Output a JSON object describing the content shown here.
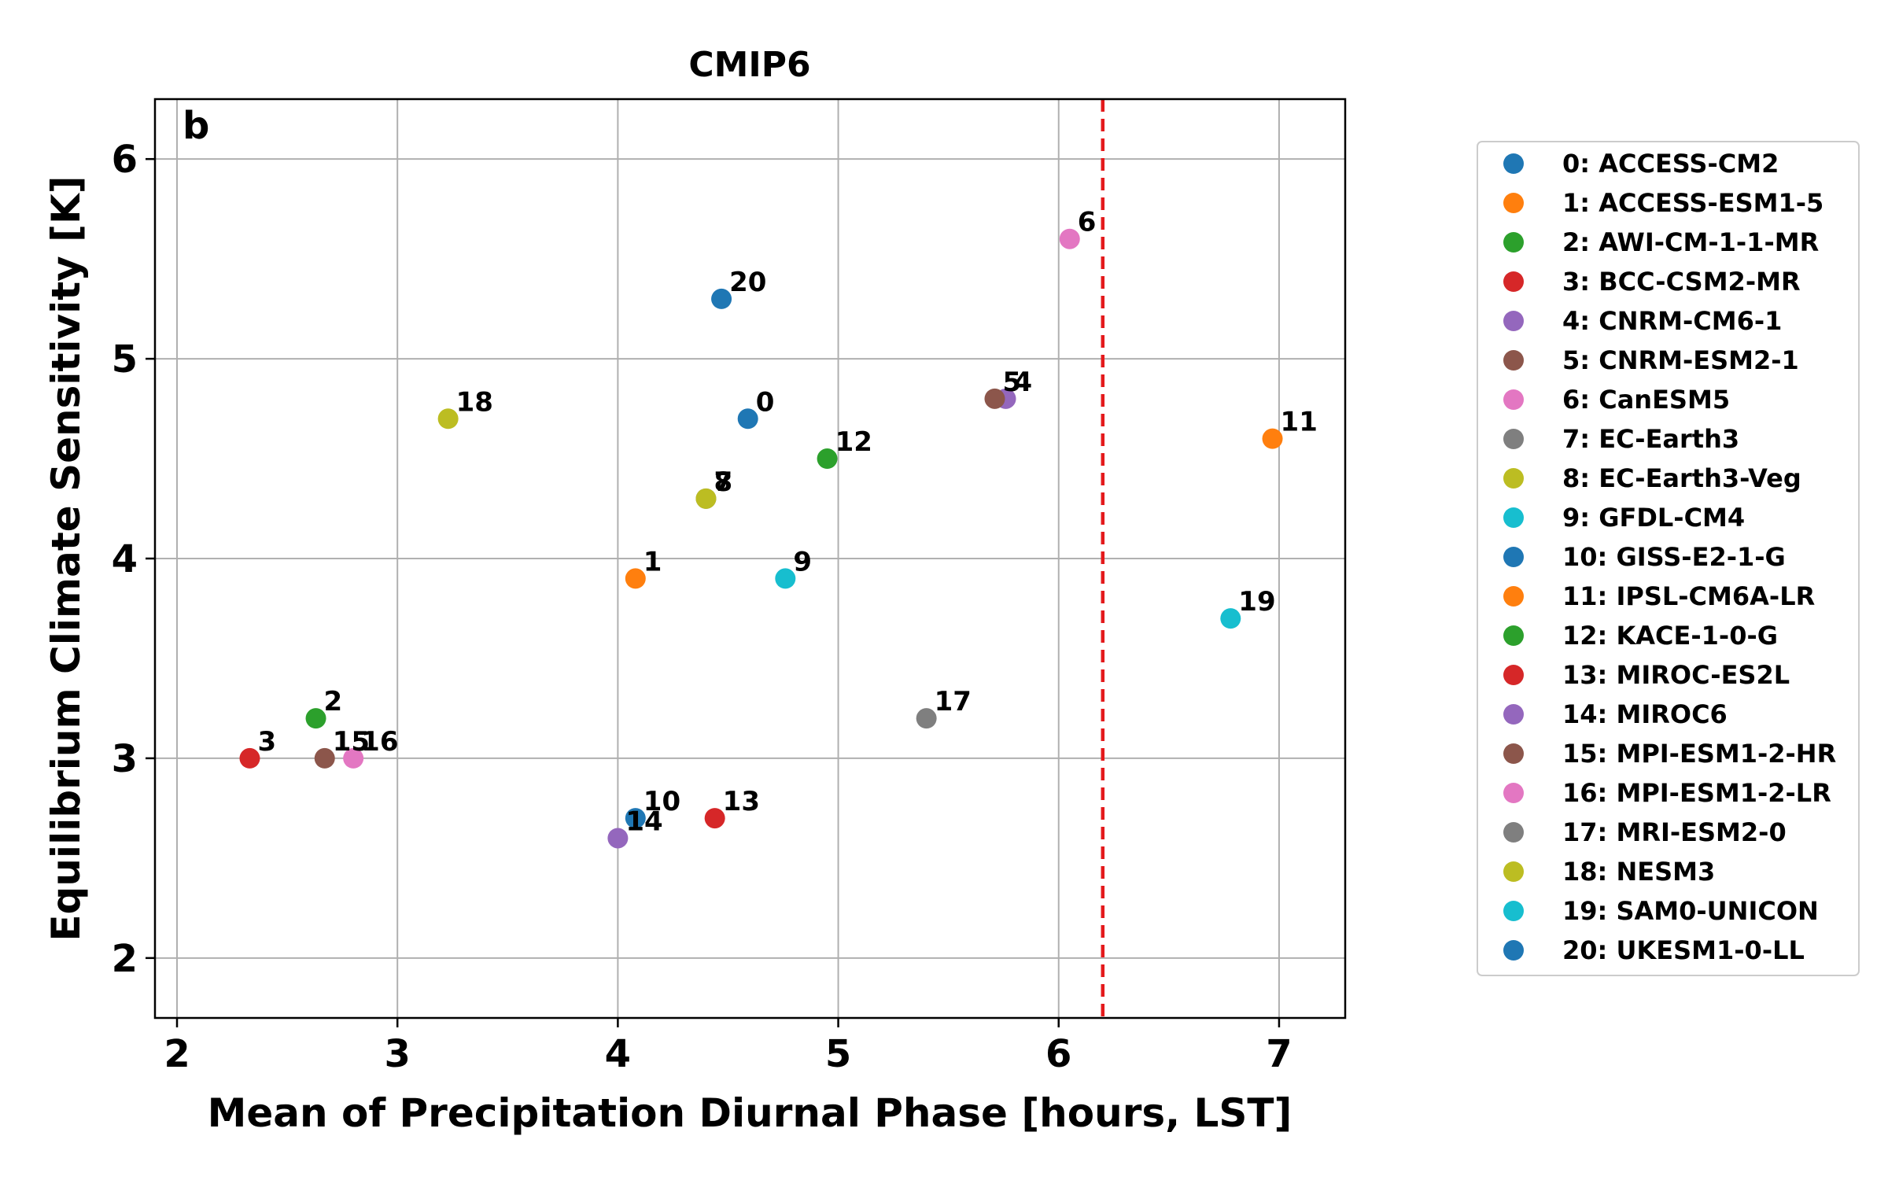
{
  "chart_data": {
    "type": "scatter",
    "title": "CMIP6",
    "panel_label": "b",
    "xlabel": "Mean of Precipitation Diurnal Phase [hours, LST]",
    "ylabel": "Equilibrium Climate Sensitivity [K]",
    "xlim": [
      1.9,
      7.3
    ],
    "ylim": [
      1.7,
      6.3
    ],
    "xticks": [
      2,
      3,
      4,
      5,
      6,
      7
    ],
    "yticks": [
      2,
      3,
      4,
      5,
      6
    ],
    "grid": true,
    "reference_line": {
      "x": 6.2,
      "color": "#e41a1c",
      "style": "dashed"
    },
    "legend_position": "outside-right",
    "points": [
      {
        "id": "0",
        "name": "0: ACCESS-CM2",
        "x": 4.59,
        "y": 4.7,
        "color": "#1f77b4"
      },
      {
        "id": "1",
        "name": "1: ACCESS-ESM1-5",
        "x": 4.08,
        "y": 3.9,
        "color": "#ff7f0e"
      },
      {
        "id": "2",
        "name": "2: AWI-CM-1-1-MR",
        "x": 2.63,
        "y": 3.2,
        "color": "#2ca02c"
      },
      {
        "id": "3",
        "name": "3: BCC-CSM2-MR",
        "x": 2.33,
        "y": 3.0,
        "color": "#d62728"
      },
      {
        "id": "4",
        "name": "4: CNRM-CM6-1",
        "x": 5.76,
        "y": 4.8,
        "color": "#9467bd"
      },
      {
        "id": "5",
        "name": "5: CNRM-ESM2-1",
        "x": 5.71,
        "y": 4.8,
        "color": "#8c564b"
      },
      {
        "id": "6",
        "name": "6: CanESM5",
        "x": 6.05,
        "y": 5.6,
        "color": "#e377c2"
      },
      {
        "id": "7",
        "name": "7: EC-Earth3",
        "x": 4.4,
        "y": 4.3,
        "color": "#7f7f7f"
      },
      {
        "id": "8",
        "name": "8: EC-Earth3-Veg",
        "x": 4.4,
        "y": 4.3,
        "color": "#bcbd22"
      },
      {
        "id": "9",
        "name": "9: GFDL-CM4",
        "x": 4.76,
        "y": 3.9,
        "color": "#17becf"
      },
      {
        "id": "10",
        "name": "10: GISS-E2-1-G",
        "x": 4.08,
        "y": 2.7,
        "color": "#1f77b4"
      },
      {
        "id": "11",
        "name": "11: IPSL-CM6A-LR",
        "x": 6.97,
        "y": 4.6,
        "color": "#ff7f0e"
      },
      {
        "id": "12",
        "name": "12: KACE-1-0-G",
        "x": 4.95,
        "y": 4.5,
        "color": "#2ca02c"
      },
      {
        "id": "13",
        "name": "13: MIROC-ES2L",
        "x": 4.44,
        "y": 2.7,
        "color": "#d62728"
      },
      {
        "id": "14",
        "name": "14: MIROC6",
        "x": 4.0,
        "y": 2.6,
        "color": "#9467bd"
      },
      {
        "id": "15",
        "name": "15: MPI-ESM1-2-HR",
        "x": 2.67,
        "y": 3.0,
        "color": "#8c564b"
      },
      {
        "id": "16",
        "name": "16: MPI-ESM1-2-LR",
        "x": 2.8,
        "y": 3.0,
        "color": "#e377c2"
      },
      {
        "id": "17",
        "name": "17: MRI-ESM2-0",
        "x": 5.4,
        "y": 3.2,
        "color": "#7f7f7f"
      },
      {
        "id": "18",
        "name": "18: NESM3",
        "x": 3.23,
        "y": 4.7,
        "color": "#bcbd22"
      },
      {
        "id": "19",
        "name": "19: SAM0-UNICON",
        "x": 6.78,
        "y": 3.7,
        "color": "#17becf"
      },
      {
        "id": "20",
        "name": "20: UKESM1-0-LL",
        "x": 4.47,
        "y": 5.3,
        "color": "#1f77b4"
      }
    ]
  }
}
